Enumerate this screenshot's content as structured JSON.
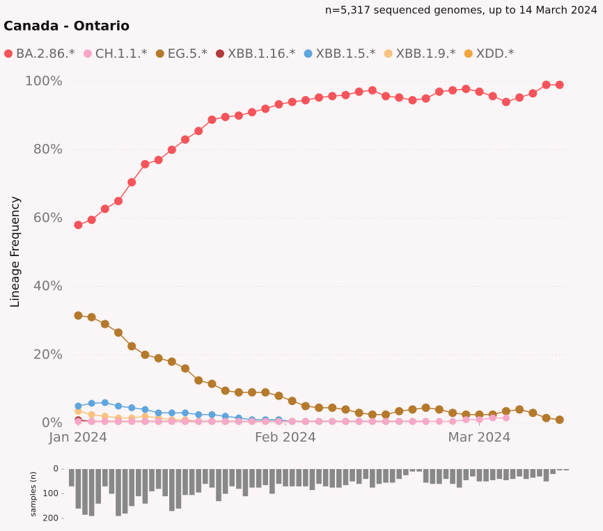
{
  "chart_data": [
    {
      "type": "line",
      "title": "Canada - Ontario",
      "subtitle": "n=5,317 sequenced genomes, up to 14 March 2024",
      "y_label": "Lineage Frequency",
      "x": [
        0,
        2,
        4,
        6,
        8,
        10,
        12,
        14,
        16,
        18,
        20,
        22,
        24,
        26,
        28,
        30,
        32,
        34,
        36,
        38,
        40,
        42,
        44,
        46,
        48,
        50,
        52,
        54,
        56,
        58,
        60,
        62,
        64,
        66,
        68,
        70,
        72
      ],
      "xlim": [
        -1.5,
        73.7
      ],
      "xticks": [
        {
          "value": 0,
          "label": "Jan 2024"
        },
        {
          "value": 31,
          "label": "Feb 2024"
        },
        {
          "value": 60,
          "label": "Mar 2024"
        }
      ],
      "ylim": [
        0,
        100
      ],
      "yticks": [
        {
          "value": 0,
          "label": "0%"
        },
        {
          "value": 20,
          "label": "20%"
        },
        {
          "value": 40,
          "label": "40%"
        },
        {
          "value": 60,
          "label": "60%"
        },
        {
          "value": 80,
          "label": "80%"
        },
        {
          "value": 100,
          "label": "100%"
        }
      ],
      "grid": true,
      "series": [
        {
          "name": "BA.2.86.*",
          "color": "#f4545a",
          "values": [
            58,
            59.5,
            62.7,
            65,
            70.5,
            75.8,
            77,
            80,
            83,
            85.5,
            88.8,
            89.6,
            90,
            91,
            92,
            93.3,
            94,
            94.5,
            95.3,
            95.7,
            96,
            97,
            97.4,
            95.7,
            95.3,
            94.5,
            95,
            97,
            97.4,
            97.8,
            97,
            95.7,
            94,
            95.3,
            96.5,
            99,
            99
          ]
        },
        {
          "name": "CH.1.1.*",
          "color": "#f7a8c8",
          "values": [
            0.5,
            0.5,
            0.5,
            0.5,
            0.5,
            0.5,
            0.5,
            0.5,
            0.5,
            0.5,
            0.5,
            0.5,
            0.5,
            0.5,
            0.5,
            0.5,
            0.5,
            0.5,
            0.5,
            0.5,
            0.5,
            0.5,
            0.5,
            0.5,
            0.5,
            0.5,
            0.5,
            0.5,
            0.5,
            1,
            1,
            1.5,
            1.5,
            null,
            null,
            null,
            null
          ]
        },
        {
          "name": "EG.5.*",
          "color": "#b5792c",
          "values": [
            31.5,
            31,
            29,
            26.5,
            22.5,
            20,
            19,
            18,
            16,
            12.5,
            11.5,
            9.5,
            9,
            9,
            9,
            8,
            6.5,
            5,
            4.5,
            4.5,
            4,
            3,
            2.5,
            2.5,
            3.5,
            4,
            4.5,
            4,
            3,
            2.5,
            2.5,
            2.5,
            3.5,
            4,
            3,
            1.5,
            1
          ]
        },
        {
          "name": "XBB.1.16.*",
          "color": "#b03a3a",
          "values": [
            1,
            0.5,
            0.5,
            0.5,
            0.5,
            0.5,
            0.5,
            0.5,
            0.5,
            0.5,
            0.5,
            0.5,
            0.5,
            0.5,
            0.5,
            0.5,
            0.5,
            0.5,
            0.5,
            0.5,
            0.5,
            0.5,
            0.5,
            0.5,
            0.5,
            0.5,
            0.5,
            null,
            null,
            null,
            null,
            null,
            null,
            null,
            null,
            null,
            null
          ]
        },
        {
          "name": "XBB.1.5.*",
          "color": "#5fa5de",
          "values": [
            5,
            5.8,
            6,
            5,
            4.5,
            4,
            3,
            3,
            3,
            2.5,
            2.5,
            2,
            1.5,
            1,
            1,
            1,
            0.5,
            0.5,
            0.5,
            0.5,
            0.5,
            0.5,
            0.5,
            0.5,
            0.5,
            null,
            null,
            null,
            null,
            null,
            null,
            null,
            null,
            null,
            null,
            null,
            null
          ]
        },
        {
          "name": "XBB.1.9.*",
          "color": "#f8c27f",
          "values": [
            3.5,
            2.5,
            2,
            1.5,
            1.5,
            2,
            1.5,
            1,
            1,
            0.5,
            0.5,
            0.5,
            0.5,
            0.5,
            0.5,
            0.5,
            0.5,
            0.5,
            0.5,
            0.5,
            0.5,
            0.5,
            null,
            null,
            null,
            null,
            null,
            null,
            null,
            null,
            null,
            null,
            null,
            null,
            null,
            null,
            null
          ]
        },
        {
          "name": "XDD.*",
          "color": "#f2a33a",
          "values": [
            0.5,
            0.5,
            0.5,
            0.5,
            0.5,
            0.5,
            0.5,
            0.5,
            0.5,
            0.5,
            0.5,
            0.5,
            0.5,
            0.5,
            0.5,
            0.5,
            0.5,
            0.5,
            null,
            null,
            null,
            null,
            null,
            null,
            null,
            null,
            null,
            null,
            null,
            null,
            null,
            null,
            null,
            null,
            null,
            null,
            null
          ]
        }
      ]
    },
    {
      "type": "bar",
      "y_label": "samples (n)",
      "x": [
        -1,
        0,
        1,
        2,
        3,
        4,
        5,
        6,
        7,
        8,
        9,
        10,
        11,
        12,
        13,
        14,
        15,
        16,
        17,
        18,
        19,
        20,
        21,
        22,
        23,
        24,
        25,
        26,
        27,
        28,
        29,
        30,
        31,
        32,
        33,
        34,
        35,
        36,
        37,
        38,
        39,
        40,
        41,
        42,
        43,
        44,
        45,
        46,
        47,
        48,
        49,
        50,
        51,
        52,
        53,
        54,
        55,
        56,
        57,
        58,
        59,
        60,
        61,
        62,
        63,
        64,
        65,
        66,
        67,
        68,
        69,
        70,
        71,
        72,
        73
      ],
      "xlim": [
        -1.5,
        73.7
      ],
      "ylim": [
        0,
        200
      ],
      "yticks": [
        0,
        100,
        200
      ],
      "color": "#888888",
      "values": [
        70,
        160,
        185,
        190,
        140,
        70,
        100,
        190,
        180,
        150,
        110,
        140,
        90,
        80,
        110,
        170,
        160,
        105,
        105,
        95,
        60,
        75,
        130,
        100,
        70,
        80,
        110,
        75,
        75,
        65,
        100,
        60,
        70,
        70,
        70,
        70,
        85,
        60,
        70,
        75,
        75,
        65,
        50,
        60,
        40,
        75,
        60,
        55,
        55,
        40,
        25,
        10,
        10,
        55,
        60,
        60,
        40,
        60,
        75,
        45,
        30,
        50,
        50,
        45,
        40,
        45,
        40,
        30,
        40,
        35,
        30,
        50,
        20,
        5,
        5
      ]
    }
  ]
}
